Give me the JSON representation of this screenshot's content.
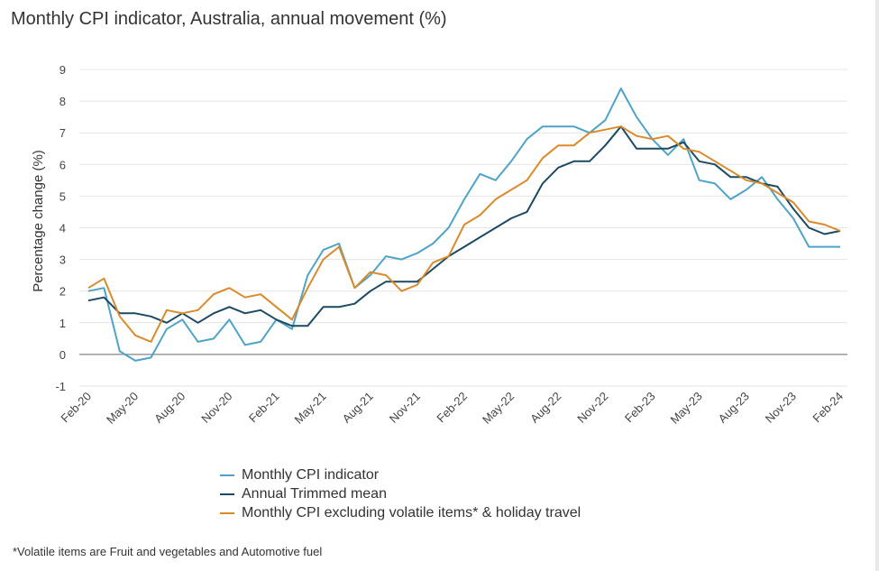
{
  "title": "Monthly CPI indicator, Australia, annual movement (%)",
  "footnote": "*Volatile items are Fruit and vegetables and Automotive fuel",
  "chart_data": {
    "type": "line",
    "title": "Monthly CPI indicator, Australia, annual movement (%)",
    "ylabel": "Percentage change (%)",
    "xlabel": "",
    "ylim": [
      -1,
      9
    ],
    "yticks": [
      -1,
      0,
      1,
      2,
      3,
      4,
      5,
      6,
      7,
      8,
      9
    ],
    "grid": "horizontal",
    "legend_position": "bottom",
    "x": [
      "Feb-20",
      "Mar-20",
      "Apr-20",
      "May-20",
      "Jun-20",
      "Jul-20",
      "Aug-20",
      "Sep-20",
      "Oct-20",
      "Nov-20",
      "Dec-20",
      "Jan-21",
      "Feb-21",
      "Mar-21",
      "Apr-21",
      "May-21",
      "Jun-21",
      "Jul-21",
      "Aug-21",
      "Sep-21",
      "Oct-21",
      "Nov-21",
      "Dec-21",
      "Jan-22",
      "Feb-22",
      "Mar-22",
      "Apr-22",
      "May-22",
      "Jun-22",
      "Jul-22",
      "Aug-22",
      "Sep-22",
      "Oct-22",
      "Nov-22",
      "Dec-22",
      "Jan-23",
      "Feb-23",
      "Mar-23",
      "Apr-23",
      "May-23",
      "Jun-23",
      "Jul-23",
      "Aug-23",
      "Sep-23",
      "Oct-23",
      "Nov-23",
      "Dec-23",
      "Jan-24",
      "Feb-24"
    ],
    "xtick_labels": [
      "Feb-20",
      "May-20",
      "Aug-20",
      "Nov-20",
      "Feb-21",
      "May-21",
      "Aug-21",
      "Nov-21",
      "Feb-22",
      "May-22",
      "Aug-22",
      "Nov-22",
      "Feb-23",
      "May-23",
      "Aug-23",
      "Nov-23",
      "Feb-24"
    ],
    "series": [
      {
        "name": "Monthly CPI indicator",
        "color": "#4fa3c7",
        "values": [
          2.0,
          2.1,
          0.1,
          -0.2,
          -0.1,
          0.8,
          1.1,
          0.4,
          0.5,
          1.1,
          0.3,
          0.4,
          1.1,
          0.8,
          2.5,
          3.3,
          3.5,
          2.1,
          2.5,
          3.1,
          3.0,
          3.2,
          3.5,
          4.0,
          4.9,
          5.7,
          5.5,
          6.1,
          6.8,
          7.2,
          7.2,
          7.2,
          7.0,
          7.4,
          8.4,
          7.5,
          6.8,
          6.3,
          6.8,
          5.5,
          5.4,
          4.9,
          5.2,
          5.6,
          4.9,
          4.3,
          3.4,
          3.4,
          3.4
        ]
      },
      {
        "name": "Annual Trimmed mean",
        "color": "#1d4a63",
        "values": [
          1.7,
          1.8,
          1.3,
          1.3,
          1.2,
          1.0,
          1.3,
          1.0,
          1.3,
          1.5,
          1.3,
          1.4,
          1.1,
          0.9,
          0.9,
          1.5,
          1.5,
          1.6,
          2.0,
          2.3,
          2.3,
          2.3,
          2.7,
          3.1,
          3.4,
          3.7,
          4.0,
          4.3,
          4.5,
          5.4,
          5.9,
          6.1,
          6.1,
          6.6,
          7.2,
          6.5,
          6.5,
          6.5,
          6.7,
          6.1,
          6.0,
          5.6,
          5.6,
          5.4,
          5.3,
          4.6,
          4.0,
          3.8,
          3.9
        ]
      },
      {
        "name": "Monthly CPI excluding volatile items* & holiday travel",
        "color": "#d98b2b",
        "values": [
          2.1,
          2.4,
          1.2,
          0.6,
          0.4,
          1.4,
          1.3,
          1.4,
          1.9,
          2.1,
          1.8,
          1.9,
          1.5,
          1.1,
          2.1,
          3.0,
          3.4,
          2.1,
          2.6,
          2.5,
          2.0,
          2.2,
          2.9,
          3.1,
          4.1,
          4.4,
          4.9,
          5.2,
          5.5,
          6.2,
          6.6,
          6.6,
          7.0,
          7.1,
          7.2,
          6.9,
          6.8,
          6.9,
          6.5,
          6.4,
          6.1,
          5.8,
          5.5,
          5.4,
          5.1,
          4.8,
          4.2,
          4.1,
          3.9
        ]
      }
    ]
  }
}
